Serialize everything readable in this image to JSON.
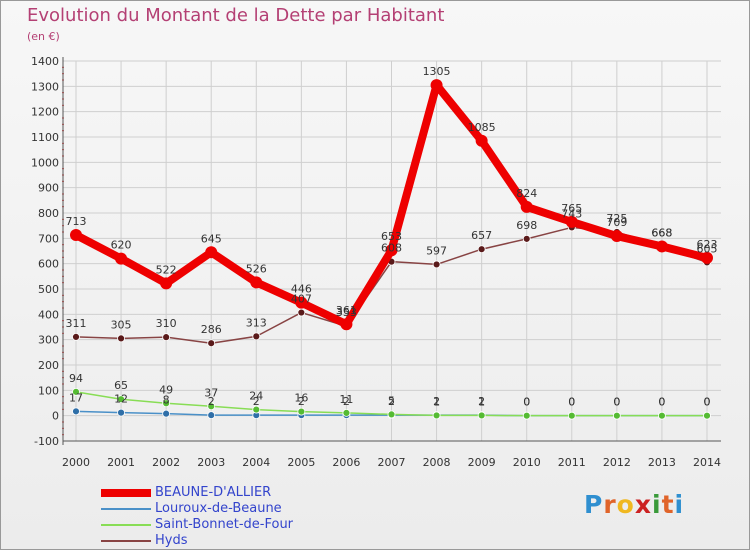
{
  "title": "Evolution du Montant de la Dette par Habitant",
  "unit": "(en €)",
  "logo": {
    "letters": [
      "P",
      "r",
      "o",
      "x",
      "i",
      "t",
      "i"
    ]
  },
  "chart_data": {
    "type": "line",
    "x": [
      "2000",
      "2001",
      "2002",
      "2003",
      "2004",
      "2005",
      "2006",
      "2007",
      "2008",
      "2009",
      "2010",
      "2011",
      "2012",
      "2013",
      "2014"
    ],
    "ylim": [
      -100,
      1400
    ],
    "yticks": [
      "-100",
      "0",
      "100",
      "200",
      "300",
      "400",
      "500",
      "600",
      "700",
      "800",
      "900",
      "1000",
      "1100",
      "1200",
      "1300",
      "1400"
    ],
    "series": [
      {
        "name": "BEAUNE-D'ALLIER",
        "color": "#ee0000",
        "values": [
          713,
          620,
          522,
          645,
          526,
          446,
          361,
          653,
          1305,
          1085,
          824,
          765,
          709,
          668,
          623
        ],
        "labels": [
          "713",
          "620",
          "522",
          "645",
          "526",
          "446",
          "361",
          "653",
          "1305",
          "1085",
          "824",
          "765",
          "709",
          "668",
          "623"
        ]
      },
      {
        "name": "Louroux-de-Beaune",
        "color": "#4a90c8",
        "values": [
          17,
          12,
          8,
          2,
          2,
          2,
          2,
          2,
          2,
          2,
          0,
          0,
          0,
          0,
          0
        ],
        "labels": [
          "17",
          "12",
          "8",
          "2",
          "2",
          "2",
          "2",
          "2",
          "2",
          "2",
          "0",
          "0",
          "0",
          "0",
          "0"
        ]
      },
      {
        "name": "Saint-Bonnet-de-Four",
        "color": "#88dd55",
        "values": [
          94,
          65,
          49,
          37,
          24,
          16,
          11,
          5,
          1,
          1,
          0,
          0,
          0,
          0,
          0
        ],
        "labels": [
          "94",
          "65",
          "49",
          "37",
          "24",
          "16",
          "11",
          "5",
          "1",
          "1",
          "0",
          "0",
          "0",
          "0",
          "0"
        ]
      },
      {
        "name": "Hyds",
        "color": "#884444",
        "values": [
          311,
          305,
          310,
          286,
          313,
          407,
          353,
          608,
          597,
          657,
          698,
          743,
          725,
          668,
          605
        ],
        "labels": [
          "311",
          "305",
          "310",
          "286",
          "313",
          "407",
          "353",
          "608",
          "597",
          "657",
          "698",
          "743",
          "725",
          "668",
          "605"
        ]
      }
    ]
  }
}
